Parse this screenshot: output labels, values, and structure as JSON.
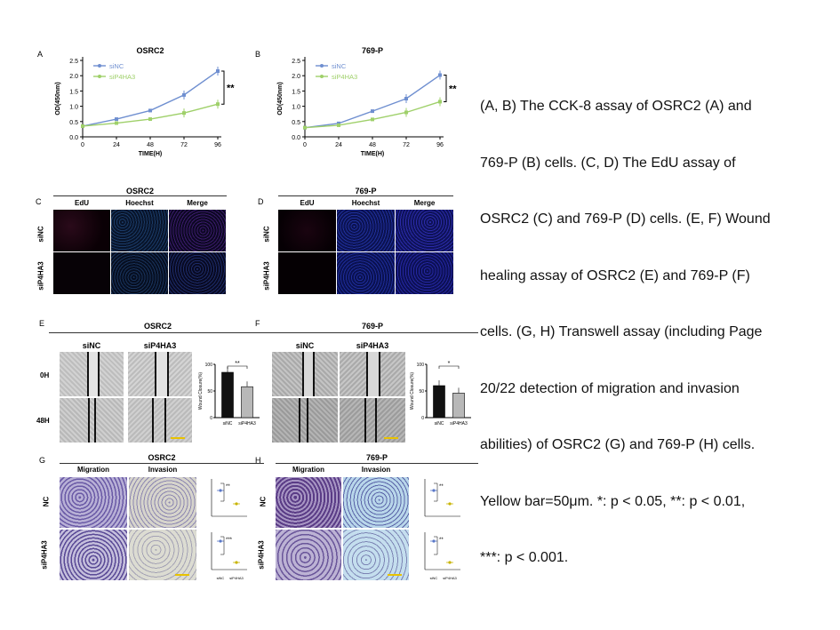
{
  "chart_data": [
    {
      "type": "line",
      "panel": "A",
      "title": "OSRC2",
      "xlabel": "TIME(H)",
      "ylabel": "OD(450nm)",
      "x": [
        0,
        24,
        48,
        72,
        96
      ],
      "xticks": [
        "0",
        "24",
        "48",
        "72",
        "96"
      ],
      "yticks": [
        "0.0",
        "0.5",
        "1.0",
        "1.5",
        "2.0",
        "2.5"
      ],
      "ylim": [
        0,
        2.5
      ],
      "series": [
        {
          "name": "siNC",
          "values": [
            0.35,
            0.58,
            0.86,
            1.37,
            2.15
          ],
          "color": "#6f8fd0"
        },
        {
          "name": "siP4HA3",
          "values": [
            0.35,
            0.45,
            0.58,
            0.78,
            1.07
          ],
          "color": "#9fd06a"
        }
      ],
      "annotation": "**",
      "legend": "top-left"
    },
    {
      "type": "line",
      "panel": "B",
      "title": "769-P",
      "xlabel": "TIME(H)",
      "ylabel": "OD(450nm)",
      "x": [
        0,
        24,
        48,
        72,
        96
      ],
      "xticks": [
        "0",
        "24",
        "48",
        "72",
        "96"
      ],
      "yticks": [
        "0.0",
        "0.5",
        "1.0",
        "1.5",
        "2.0",
        "2.5"
      ],
      "ylim": [
        0,
        2.5
      ],
      "series": [
        {
          "name": "siNC",
          "values": [
            0.3,
            0.44,
            0.84,
            1.25,
            2.02
          ],
          "color": "#6f8fd0"
        },
        {
          "name": "siP4HA3",
          "values": [
            0.3,
            0.38,
            0.57,
            0.8,
            1.15
          ],
          "color": "#9fd06a"
        }
      ],
      "annotation": "**",
      "legend": "top-left"
    },
    {
      "type": "bar",
      "panel": "E",
      "categories": [
        "siNC",
        "siP4HA3"
      ],
      "values": [
        85,
        58
      ],
      "ylabel": "Wound Closure(%)",
      "yticks": [
        "0",
        "50",
        "100"
      ],
      "ylim": [
        0,
        100
      ],
      "annotation": "**"
    },
    {
      "type": "bar",
      "panel": "F",
      "categories": [
        "siNC",
        "siP4HA3"
      ],
      "values": [
        60,
        46
      ],
      "ylabel": "Wound Closure(%)",
      "yticks": [
        "0",
        "50",
        "100"
      ],
      "ylim": [
        0,
        100
      ],
      "annotation": "*"
    }
  ],
  "figure": {
    "panel_letters": {
      "A": "A",
      "B": "B",
      "C": "C",
      "D": "D",
      "E": "E",
      "F": "F",
      "G": "G",
      "H": "H"
    },
    "edu": {
      "c_title": "OSRC2",
      "d_title": "769-P",
      "columns": [
        "EdU",
        "Hoechst",
        "Merge"
      ],
      "rows": [
        "siNC",
        "siP4HA3"
      ]
    },
    "wound": {
      "e_title": "OSRC2",
      "f_title": "769-P",
      "columns": [
        "siNC",
        "siP4HA3"
      ],
      "rows": [
        "0H",
        "48H"
      ]
    },
    "transwell": {
      "g_title": "OSRC2",
      "h_title": "769-P",
      "columns": [
        "Migration",
        "Invasion"
      ],
      "rows": [
        "NC",
        "siP4HA3"
      ],
      "mini_stars": {
        "g_top": "**",
        "g_bottom": "***",
        "h_top": "**",
        "h_bottom": "**"
      },
      "mini_categories": [
        "siNC",
        "siP4HA3"
      ]
    }
  },
  "caption_lines": [
    "(A, B) The CCK-8 assay of OSRC2 (A) and",
    "769-P (B) cells. (C, D) The EdU assay of",
    "OSRC2 (C) and 769-P (D) cells. (E, F) Wound",
    "healing assay of OSRC2 (E) and 769-P (F)",
    "cells. (G, H) Transwell assay (including Page",
    "20/22 detection of migration and invasion",
    "abilities) of OSRC2 (G) and 769-P (H) cells.",
    "Yellow bar=50μm. *: p < 0.05, **: p < 0.01,",
    "***: p < 0.001."
  ]
}
